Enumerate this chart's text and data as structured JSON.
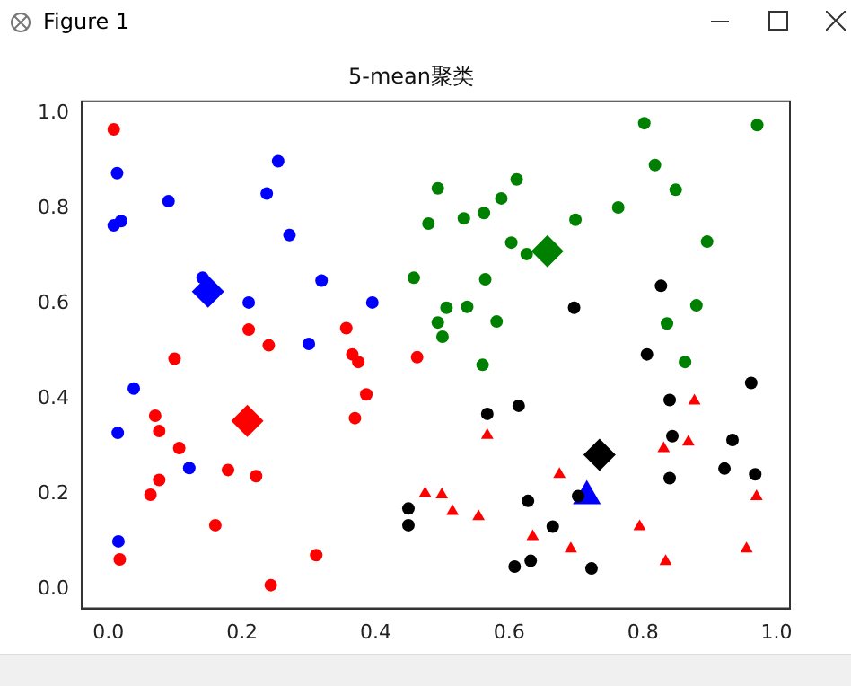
{
  "chart_data": {
    "type": "scatter",
    "title": "5-mean聚类",
    "annotations": [
      "Figure 1"
    ],
    "xlim": [
      -0.04,
      1.02
    ],
    "ylim": [
      -0.04,
      1.026
    ],
    "xticks": [
      {
        "value": 0,
        "label": "0.0"
      },
      {
        "value": 0.2,
        "label": "0.2"
      },
      {
        "value": 0.4,
        "label": "0.4"
      },
      {
        "value": 0.6,
        "label": "0.6"
      },
      {
        "value": 0.8,
        "label": "0.8"
      },
      {
        "value": 1,
        "label": "1.0"
      }
    ],
    "yticks": [
      {
        "value": 0,
        "label": "0.0"
      },
      {
        "value": 0.2,
        "label": "0.2"
      },
      {
        "value": 0.4,
        "label": "0.4"
      },
      {
        "value": 0.6,
        "label": "0.6"
      },
      {
        "value": 0.8,
        "label": "0.8"
      },
      {
        "value": 1,
        "label": "1.0"
      }
    ],
    "grid": false,
    "legend": false,
    "series": [
      {
        "color": "#0000ff",
        "marker": "circle",
        "x": [
          0.013,
          0.008,
          0.019,
          0.09,
          0.254,
          0.237,
          0.271,
          0.319,
          0.21,
          0.3,
          0.395,
          0.141,
          0.038,
          0.014,
          0.121,
          0.015
        ],
        "values": [
          0.875,
          0.765,
          0.774,
          0.816,
          0.9,
          0.832,
          0.745,
          0.649,
          0.603,
          0.516,
          0.603,
          0.655,
          0.422,
          0.329,
          0.255,
          0.101
        ]
      },
      {
        "color": "#ff0000",
        "marker": "circle",
        "x": [
          0.008,
          0.099,
          0.21,
          0.24,
          0.356,
          0.365,
          0.374,
          0.462,
          0.07,
          0.076,
          0.106,
          0.076,
          0.063,
          0.017,
          0.16,
          0.179,
          0.221,
          0.243,
          0.311,
          0.369,
          0.386
        ],
        "values": [
          0.967,
          0.485,
          0.546,
          0.513,
          0.549,
          0.494,
          0.478,
          0.488,
          0.365,
          0.333,
          0.297,
          0.23,
          0.199,
          0.063,
          0.135,
          0.251,
          0.238,
          0.009,
          0.072,
          0.36,
          0.41
        ]
      },
      {
        "color": "#008000",
        "marker": "circle",
        "x": [
          0.802,
          0.971,
          0.818,
          0.849,
          0.493,
          0.611,
          0.588,
          0.562,
          0.532,
          0.479,
          0.763,
          0.699,
          0.896,
          0.603,
          0.626,
          0.457,
          0.564,
          0.506,
          0.537,
          0.493,
          0.5,
          0.581,
          0.88,
          0.836,
          0.56,
          0.863
        ],
        "values": [
          0.98,
          0.976,
          0.892,
          0.84,
          0.843,
          0.862,
          0.822,
          0.791,
          0.78,
          0.769,
          0.803,
          0.777,
          0.731,
          0.729,
          0.705,
          0.655,
          0.652,
          0.592,
          0.594,
          0.561,
          0.531,
          0.563,
          0.597,
          0.559,
          0.472,
          0.478
        ]
      },
      {
        "color": "#000000",
        "marker": "circle",
        "x": [
          0.827,
          0.697,
          0.806,
          0.962,
          0.84,
          0.567,
          0.614,
          0.844,
          0.934,
          0.922,
          0.968,
          0.84,
          0.703,
          0.628,
          0.665,
          0.449,
          0.449,
          0.608,
          0.632,
          0.723
        ],
        "values": [
          0.638,
          0.592,
          0.494,
          0.434,
          0.398,
          0.369,
          0.386,
          0.322,
          0.314,
          0.254,
          0.242,
          0.234,
          0.196,
          0.186,
          0.132,
          0.17,
          0.135,
          0.048,
          0.06,
          0.044
        ]
      },
      {
        "color": "#ff0000",
        "marker": "triangle",
        "x": [
          0.877,
          0.567,
          0.831,
          0.868,
          0.675,
          0.474,
          0.499,
          0.515,
          0.554,
          0.97,
          0.795,
          0.635,
          0.692,
          0.834,
          0.955
        ],
        "values": [
          0.396,
          0.324,
          0.296,
          0.31,
          0.242,
          0.202,
          0.199,
          0.164,
          0.153,
          0.195,
          0.132,
          0.111,
          0.085,
          0.059,
          0.085
        ]
      },
      {
        "color": "#0000ff",
        "marker": "diamond",
        "x": [
          0.149
        ],
        "values": [
          0.626
        ]
      },
      {
        "color": "#ff0000",
        "marker": "diamond",
        "x": [
          0.208
        ],
        "values": [
          0.354
        ]
      },
      {
        "color": "#008000",
        "marker": "diamond",
        "x": [
          0.657
        ],
        "values": [
          0.711
        ]
      },
      {
        "color": "#000000",
        "marker": "diamond",
        "x": [
          0.735
        ],
        "values": [
          0.283
        ]
      },
      {
        "color": "#0000ff",
        "marker": "triangle",
        "x": [
          0.716
        ],
        "values": [
          0.196
        ]
      }
    ]
  }
}
